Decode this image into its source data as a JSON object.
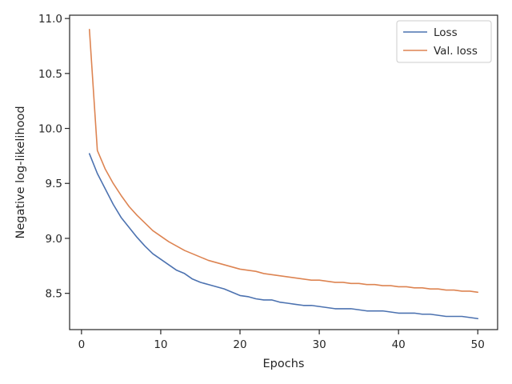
{
  "chart_data": {
    "type": "line",
    "xlabel": "Epochs",
    "ylabel": "Negative log-likelihood",
    "xlim": [
      -1.5,
      52.5
    ],
    "ylim": [
      8.17,
      11.03
    ],
    "xticks": [
      0,
      10,
      20,
      30,
      40,
      50
    ],
    "yticks": [
      8.5,
      9.0,
      9.5,
      10.0,
      10.5,
      11.0
    ],
    "ytick_labels": [
      "8.5",
      "9.0",
      "9.5",
      "10.0",
      "10.5",
      "11.0"
    ],
    "grid": false,
    "legend_position": "top-right",
    "x": [
      1,
      2,
      3,
      4,
      5,
      6,
      7,
      8,
      9,
      10,
      11,
      12,
      13,
      14,
      15,
      16,
      17,
      18,
      19,
      20,
      21,
      22,
      23,
      24,
      25,
      26,
      27,
      28,
      29,
      30,
      31,
      32,
      33,
      34,
      35,
      36,
      37,
      38,
      39,
      40,
      41,
      42,
      43,
      44,
      45,
      46,
      47,
      48,
      49,
      50
    ],
    "series": [
      {
        "name": "Loss",
        "color": "#4c72b0",
        "values": [
          9.77,
          9.59,
          9.45,
          9.31,
          9.19,
          9.1,
          9.01,
          8.93,
          8.86,
          8.81,
          8.76,
          8.71,
          8.68,
          8.63,
          8.6,
          8.58,
          8.56,
          8.54,
          8.51,
          8.48,
          8.47,
          8.45,
          8.44,
          8.44,
          8.42,
          8.41,
          8.4,
          8.39,
          8.39,
          8.38,
          8.37,
          8.36,
          8.36,
          8.36,
          8.35,
          8.34,
          8.34,
          8.34,
          8.33,
          8.32,
          8.32,
          8.32,
          8.31,
          8.31,
          8.3,
          8.29,
          8.29,
          8.29,
          8.28,
          8.27
        ]
      },
      {
        "name": "Val. loss",
        "color": "#dd8452",
        "values": [
          10.9,
          9.8,
          9.63,
          9.5,
          9.39,
          9.29,
          9.21,
          9.14,
          9.07,
          9.02,
          8.97,
          8.93,
          8.89,
          8.86,
          8.83,
          8.8,
          8.78,
          8.76,
          8.74,
          8.72,
          8.71,
          8.7,
          8.68,
          8.67,
          8.66,
          8.65,
          8.64,
          8.63,
          8.62,
          8.62,
          8.61,
          8.6,
          8.6,
          8.59,
          8.59,
          8.58,
          8.58,
          8.57,
          8.57,
          8.56,
          8.56,
          8.55,
          8.55,
          8.54,
          8.54,
          8.53,
          8.53,
          8.52,
          8.52,
          8.51
        ]
      }
    ]
  }
}
